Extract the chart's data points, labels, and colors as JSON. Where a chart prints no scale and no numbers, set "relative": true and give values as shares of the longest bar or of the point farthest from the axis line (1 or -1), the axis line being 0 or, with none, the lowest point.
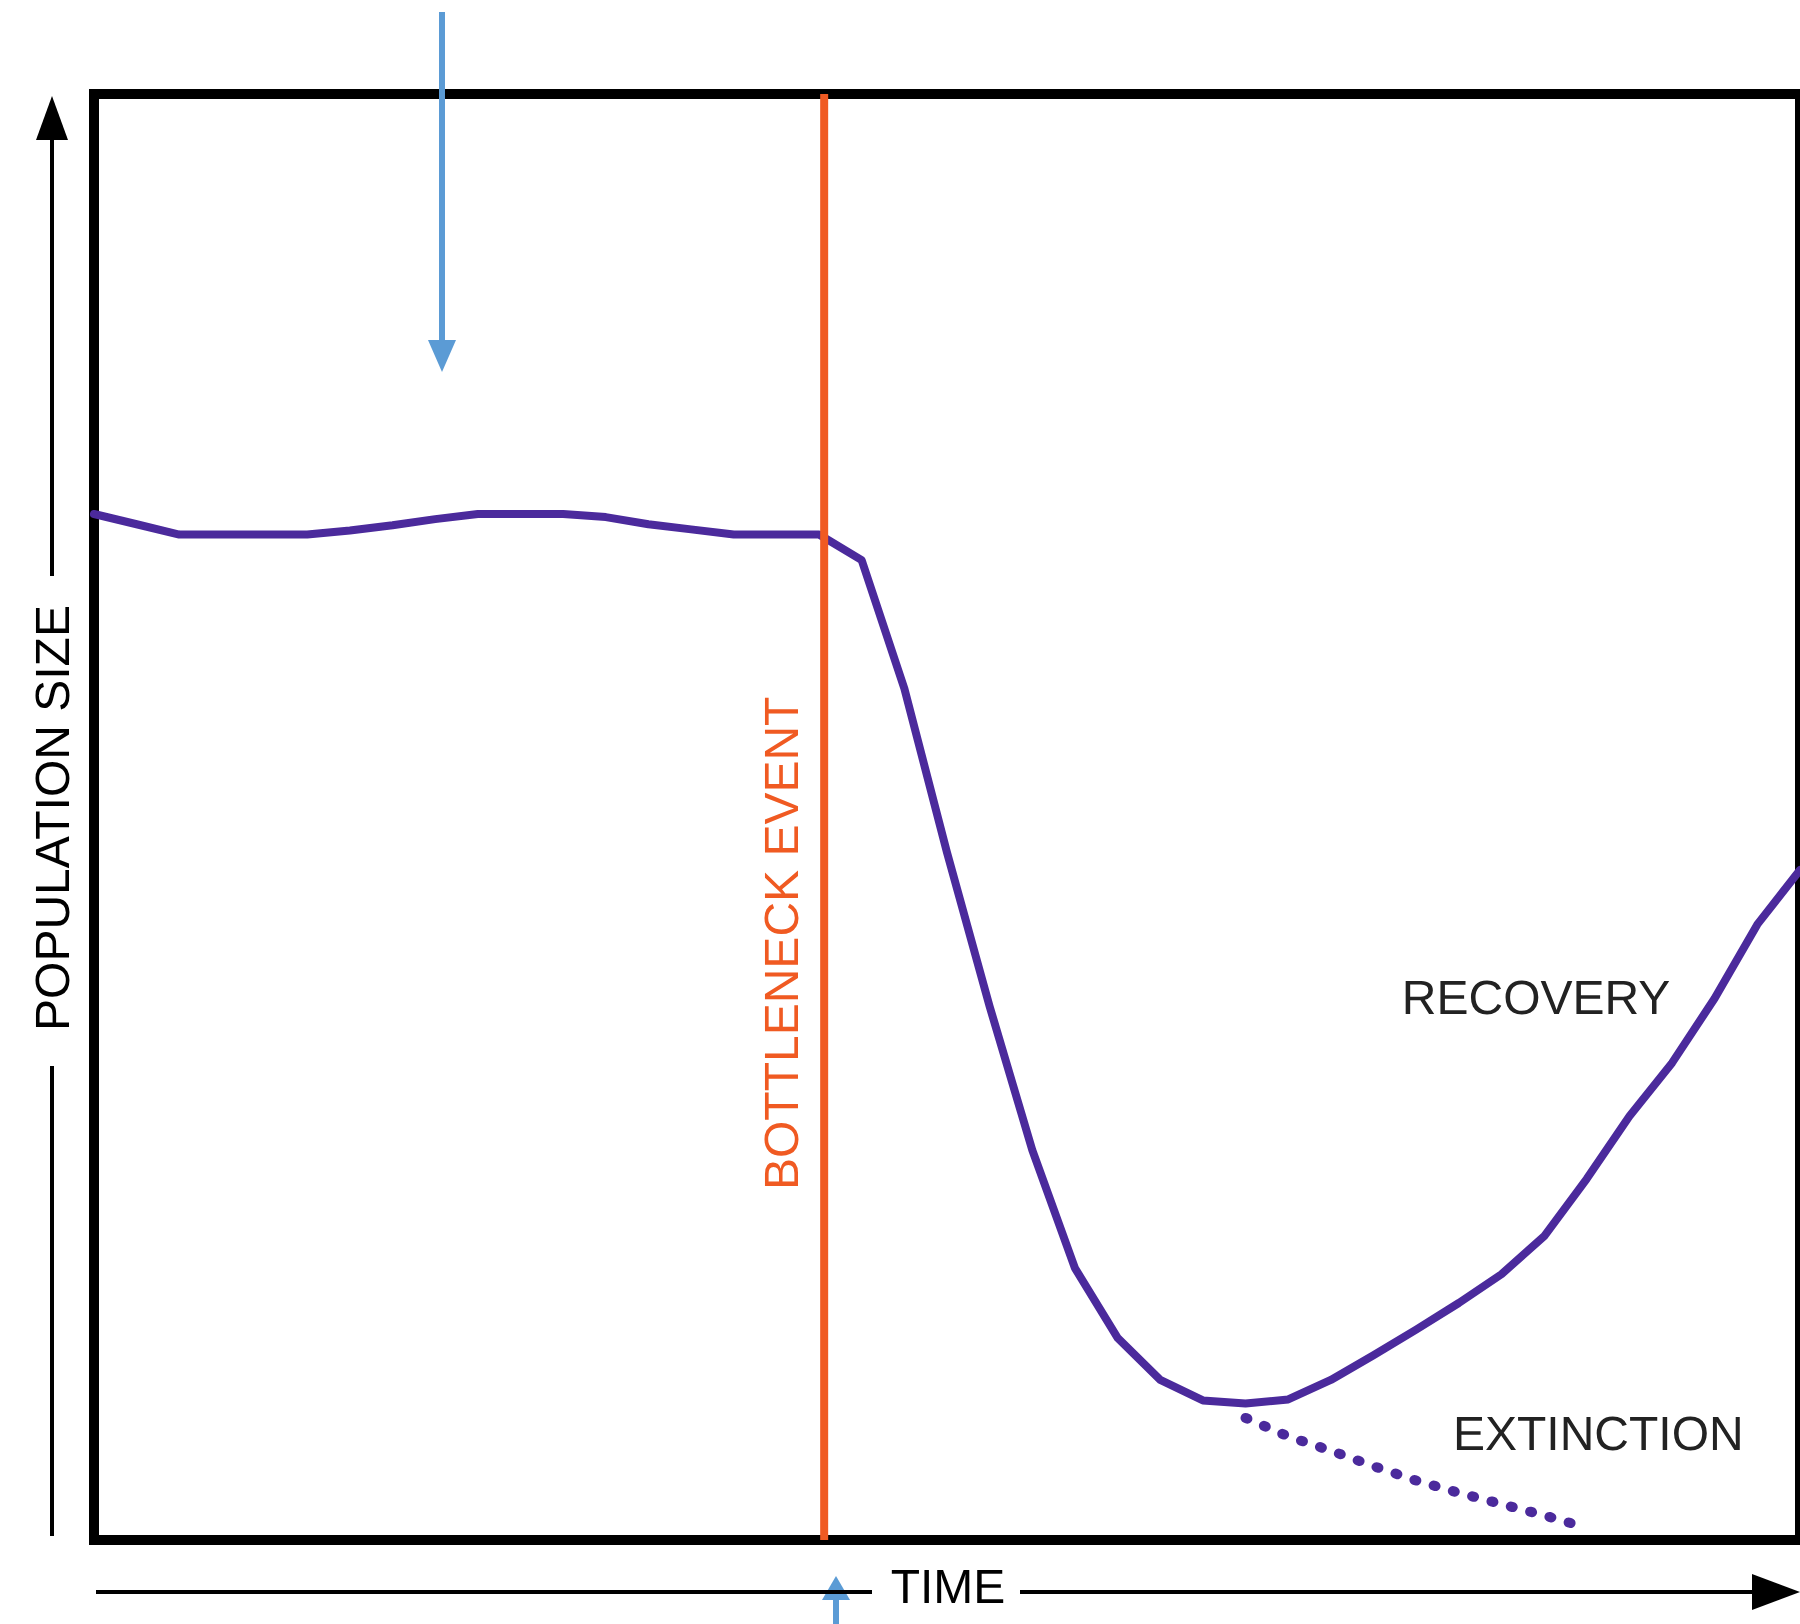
{
  "chart_data": {
    "type": "line",
    "xlabel": "TIME",
    "ylabel": "POPULATION SIZE",
    "relative": true,
    "tick_labels": false,
    "grid": false,
    "legend": false,
    "marker": "none",
    "categories": [
      null,
      null,
      null,
      null,
      null,
      null,
      null,
      null,
      null,
      null,
      null,
      null,
      null,
      null,
      null,
      null,
      null,
      null,
      null,
      null,
      null,
      null,
      null,
      null,
      null,
      null,
      null,
      null,
      null,
      null,
      null,
      null,
      null,
      null,
      null,
      null,
      null,
      null,
      null,
      null,
      null
    ],
    "series": [
      {
        "color": "#4b2a9c",
        "line_style": "solid",
        "values": [
          1,
          0.99,
          0.98,
          0.98,
          0.98,
          0.98,
          0.984,
          0.989,
          0.995,
          1,
          1,
          1,
          0.997,
          0.99,
          0.985,
          0.98,
          0.98,
          0.98,
          0.955,
          0.83,
          0.67,
          0.52,
          0.38,
          0.265,
          0.197,
          0.156,
          0.136,
          0.133,
          0.137,
          0.156,
          0.18,
          0.205,
          0.231,
          0.259,
          0.296,
          0.352,
          0.413,
          0.465,
          0.528,
          0.6,
          0.653
        ]
      },
      {
        "color": "#4b2a9c",
        "line_style": "dotted",
        "values": [
          null,
          null,
          null,
          null,
          null,
          null,
          null,
          null,
          null,
          null,
          null,
          null,
          null,
          null,
          null,
          null,
          null,
          null,
          null,
          null,
          null,
          null,
          null,
          null,
          null,
          null,
          null,
          0.119,
          0.101,
          0.087,
          0.072,
          0.058,
          0.046,
          0.035,
          0.024,
          0.012,
          null,
          null,
          null,
          null,
          null
        ]
      }
    ],
    "ref_lines": [
      {
        "axis": "x",
        "label": "BOTTLENECK EVENT",
        "color": "#f05a22"
      }
    ],
    "annotations": [
      "RECOVERY",
      "EXTINCTION"
    ]
  }
}
